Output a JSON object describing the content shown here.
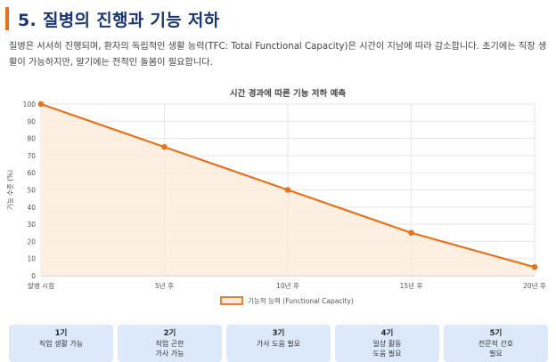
{
  "header": {
    "title": "5. 질병의 진행과 기능 저하"
  },
  "intro": {
    "text": "질병은 서서히 진행되며, 환자의 독립적인 생활 능력(TFC: Total Functional Capacity)은 시간이 지남에 따라 감소합니다. 초기에는 직장 생활이 가능하지만, 말기에는 전적인 돌봄이 필요합니다."
  },
  "colors": {
    "accent": "#e8721c",
    "title": "#1a3570",
    "stage_bg": "#dce9fa"
  },
  "chart_data": {
    "type": "area",
    "title": "시간 경과에 따른 기능 저하 예측",
    "categories": [
      "발병 시점",
      "5년 후",
      "10년 후",
      "15년 후",
      "20년 후"
    ],
    "series": [
      {
        "name": "기능적 능력 (Functional Capacity)",
        "values": [
          100,
          75,
          50,
          25,
          5
        ]
      }
    ],
    "ylabel": "기능 수준 (%)",
    "xlabel": "",
    "ylim": [
      0,
      100
    ],
    "yticks": [
      "0",
      "10",
      "20",
      "30",
      "40",
      "50",
      "60",
      "70",
      "80",
      "90",
      "100"
    ],
    "grid": true,
    "legend": "bottom"
  },
  "stages": [
    {
      "num": "1기",
      "lines": [
        "직업 생활 가능"
      ]
    },
    {
      "num": "2기",
      "lines": [
        "직업 곤란",
        "가사 가능"
      ]
    },
    {
      "num": "3기",
      "lines": [
        "가사 도움 필요"
      ]
    },
    {
      "num": "4기",
      "lines": [
        "일상 활동",
        "도움 필요"
      ]
    },
    {
      "num": "5기",
      "lines": [
        "전문적 간호",
        "필요"
      ]
    }
  ]
}
